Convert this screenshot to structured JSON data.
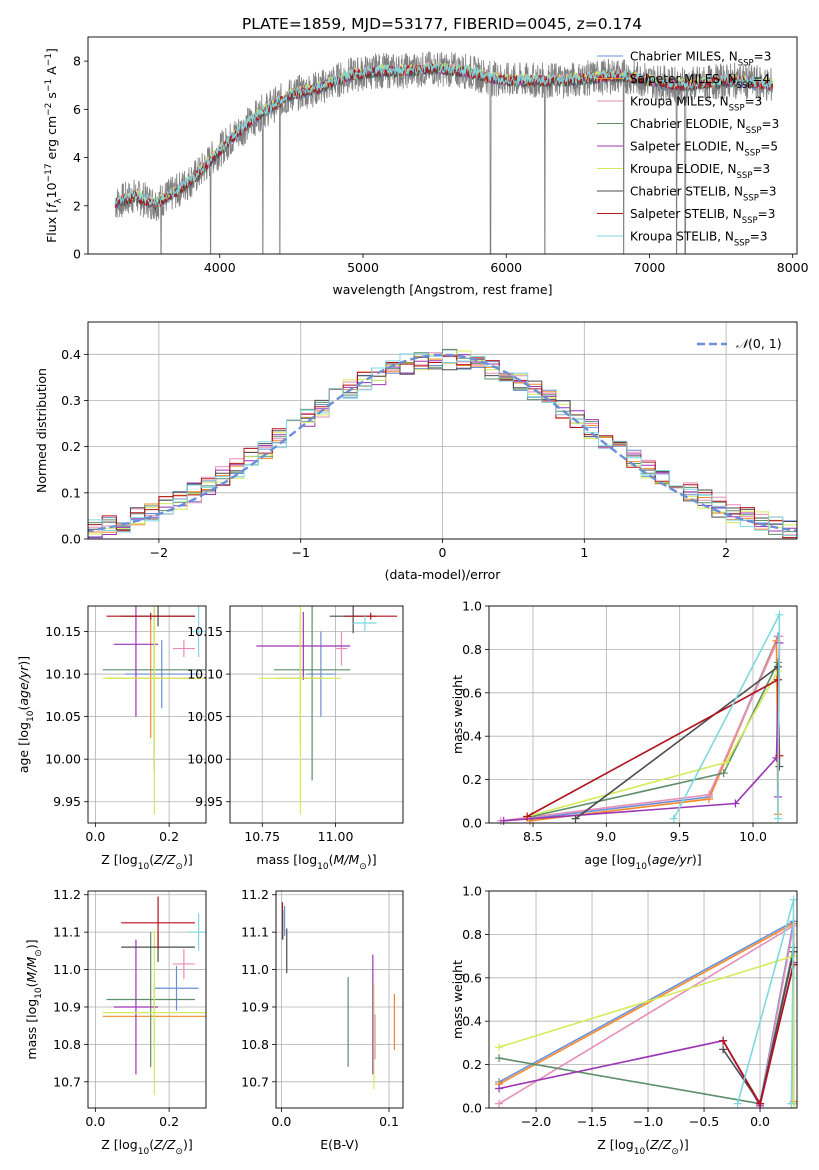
{
  "figure": {
    "title": "PLATE=1859, MJD=53177, FIBERID=0045, z=0.174"
  },
  "series": [
    {
      "name": "Chabrier MILES, N_SSP=3",
      "label_main": "Chabrier MILES, N",
      "label_sub": "SSP",
      "label_tail": "=3",
      "color": "#6b8fd6"
    },
    {
      "name": "Salpeter MILES, N_SSP=4",
      "label_main": "Salpeter MILES, N",
      "label_sub": "SSP",
      "label_tail": "=4",
      "color": "#f5892a"
    },
    {
      "name": "Kroupa MILES, N_SSP=3",
      "label_main": "Kroupa MILES, N",
      "label_sub": "SSP",
      "label_tail": "=3",
      "color": "#e68fb9"
    },
    {
      "name": "Chabrier ELODIE, N_SSP=3",
      "label_main": "Chabrier ELODIE, N",
      "label_sub": "SSP",
      "label_tail": "=3",
      "color": "#5e8e6a"
    },
    {
      "name": "Salpeter ELODIE, N_SSP=5",
      "label_main": "Salpeter ELODIE, N",
      "label_sub": "SSP",
      "label_tail": "=5",
      "color": "#9c35b5"
    },
    {
      "name": "Kroupa ELODIE, N_SSP=3",
      "label_main": "Kroupa ELODIE, N",
      "label_sub": "SSP",
      "label_tail": "=3",
      "color": "#d4ec5a"
    },
    {
      "name": "Chabrier STELIB, N_SSP=3",
      "label_main": "Chabrier STELIB, N",
      "label_sub": "SSP",
      "label_tail": "=3",
      "color": "#4d4d4d"
    },
    {
      "name": "Salpeter STELIB, N_SSP=3",
      "label_main": "Salpeter STELIB, N",
      "label_sub": "SSP",
      "label_tail": "=3",
      "color": "#b3131b"
    },
    {
      "name": "Kroupa STELIB, N_SSP=3",
      "label_main": "Kroupa STELIB, N",
      "label_sub": "SSP",
      "label_tail": "=3",
      "color": "#7fd8e0"
    }
  ],
  "chart_data": [
    {
      "id": "spectrum",
      "type": "line",
      "xlabel": "wavelength [Angstrom, rest frame]",
      "ylabel": "Flux [f_λ 10^-17 erg cm^-2 s^-1 A^-1]",
      "xlim": [
        3080,
        8030
      ],
      "ylim": [
        0,
        9
      ],
      "xticks": [
        4000,
        5000,
        6000,
        7000,
        8000
      ],
      "yticks": [
        0,
        2,
        4,
        6,
        8
      ],
      "grid": false,
      "legend": "upper right",
      "data_color": "#808080",
      "data_profile": {
        "x": [
          3270,
          3400,
          3550,
          3700,
          3850,
          3950,
          4100,
          4300,
          4500,
          4700,
          4900,
          5100,
          5300,
          5500,
          5700,
          5900,
          6000,
          6200,
          6400,
          6600,
          6800,
          7000,
          7200,
          7400,
          7600,
          7860
        ],
        "y": [
          2.1,
          2.4,
          2.1,
          2.6,
          3.3,
          4.0,
          4.9,
          5.9,
          6.6,
          6.9,
          7.4,
          7.6,
          7.6,
          7.7,
          7.6,
          7.3,
          7.2,
          7.2,
          7.2,
          7.3,
          7.4,
          7.2,
          7.0,
          7.1,
          7.2,
          7.0
        ]
      },
      "absorption_lines": [
        3590,
        3935,
        4300,
        4420,
        5890,
        6270,
        6820,
        7190,
        7250
      ]
    },
    {
      "id": "residual_histogram",
      "type": "histogram",
      "xlabel": "(data-model)/error",
      "ylabel": "Normed distribution",
      "xlim": [
        -2.5,
        2.5
      ],
      "ylim": [
        0,
        0.47
      ],
      "xticks": [
        -2,
        -1,
        0,
        1,
        2
      ],
      "yticks": [
        0.0,
        0.1,
        0.2,
        0.3,
        0.4
      ],
      "grid": true,
      "legend": "upper right",
      "legend_label": "N(0,1)",
      "reference_curve": {
        "type": "gaussian",
        "mean": 0,
        "sigma": 1,
        "color": "#6b8fd6"
      },
      "bin_width": 0.1
    },
    {
      "id": "age_vs_Z",
      "type": "scatter",
      "xlabel": "Z [log10(Z/Z_sun)]",
      "ylabel": "age [log10(age/yr)]",
      "xlim": [
        -0.02,
        0.3
      ],
      "ylim": [
        9.925,
        10.18
      ],
      "xticks": [
        0.0,
        0.2
      ],
      "yticks": [
        9.95,
        10.0,
        10.05,
        10.1,
        10.15
      ],
      "grid": true,
      "points": [
        {
          "x": 0.18,
          "xerr": 0.1,
          "y": 10.1,
          "yerr": 0.04
        },
        {
          "x": 0.15,
          "xerr": 0.12,
          "y": 10.095,
          "yerr": 0.07
        },
        {
          "x": 0.24,
          "xerr": 0.03,
          "y": 10.13,
          "yerr": 0.01
        },
        {
          "x": 0.16,
          "xerr": 0.14,
          "y": 10.105,
          "yerr": 0.12
        },
        {
          "x": 0.11,
          "xerr": 0.06,
          "y": 10.135,
          "yerr": 0.085
        },
        {
          "x": 0.16,
          "xerr": 0.14,
          "y": 10.095,
          "yerr": 0.16
        },
        {
          "x": 0.17,
          "xerr": 0.1,
          "y": 10.168,
          "yerr": 0.012
        },
        {
          "x": 0.15,
          "xerr": 0.12,
          "y": 10.168,
          "yerr": 0.004
        },
        {
          "x": 0.28,
          "xerr": 0.02,
          "y": 10.15,
          "yerr": 0.03
        }
      ]
    },
    {
      "id": "age_vs_mass",
      "type": "scatter",
      "xlabel": "mass [log10(M/M_sun)]",
      "ylabel": "",
      "xlim": [
        10.64,
        11.23
      ],
      "ylim": [
        9.925,
        10.18
      ],
      "xticks": [
        10.75,
        11.0
      ],
      "yticks": [
        9.95,
        10.0,
        10.05,
        10.1,
        10.15
      ],
      "grid": true,
      "points": [
        {
          "x": 10.95,
          "xerr": 0.05,
          "y": 10.1,
          "yerr": 0.05
        },
        {
          "x": 10.88,
          "xerr": 0.08,
          "y": 10.095,
          "yerr": 0.075
        },
        {
          "x": 11.02,
          "xerr": 0.02,
          "y": 10.13,
          "yerr": 0.02
        },
        {
          "x": 10.92,
          "xerr": 0.13,
          "y": 10.105,
          "yerr": 0.13
        },
        {
          "x": 10.89,
          "xerr": 0.16,
          "y": 10.133,
          "yerr": 0.04
        },
        {
          "x": 10.88,
          "xerr": 0.14,
          "y": 10.095,
          "yerr": 0.16
        },
        {
          "x": 11.06,
          "xerr": 0.08,
          "y": 10.168,
          "yerr": 0.02
        },
        {
          "x": 11.12,
          "xerr": 0.09,
          "y": 10.168,
          "yerr": 0.004
        },
        {
          "x": 11.1,
          "xerr": 0.04,
          "y": 10.16,
          "yerr": 0.01
        }
      ]
    },
    {
      "id": "mass_vs_Z",
      "type": "scatter",
      "xlabel": "Z [log10(Z/Z_sun)]",
      "ylabel": "mass [log10(M/M_sun)]",
      "xlim": [
        -0.02,
        0.3
      ],
      "ylim": [
        10.63,
        11.21
      ],
      "xticks": [
        0.0,
        0.2
      ],
      "yticks": [
        10.7,
        10.8,
        10.9,
        11.0,
        11.1,
        11.2
      ],
      "grid": true,
      "points": [
        {
          "x": 0.22,
          "xerr": 0.06,
          "y": 10.95,
          "yerr": 0.06
        },
        {
          "x": 0.16,
          "xerr": 0.14,
          "y": 10.875,
          "yerr": 0.085
        },
        {
          "x": 0.24,
          "xerr": 0.03,
          "y": 11.015,
          "yerr": 0.04
        },
        {
          "x": 0.15,
          "xerr": 0.12,
          "y": 10.92,
          "yerr": 0.18
        },
        {
          "x": 0.11,
          "xerr": 0.06,
          "y": 10.9,
          "yerr": 0.18
        },
        {
          "x": 0.16,
          "xerr": 0.14,
          "y": 10.885,
          "yerr": 0.22
        },
        {
          "x": 0.17,
          "xerr": 0.1,
          "y": 11.06,
          "yerr": 0.04
        },
        {
          "x": 0.17,
          "xerr": 0.1,
          "y": 11.125,
          "yerr": 0.07
        },
        {
          "x": 0.28,
          "xerr": 0.03,
          "y": 11.1,
          "yerr": 0.05
        }
      ]
    },
    {
      "id": "mass_vs_EBV",
      "type": "scatter",
      "xlabel": "E(B-V)",
      "ylabel": "",
      "xlim": [
        -0.005,
        0.113
      ],
      "ylim": [
        10.63,
        11.21
      ],
      "xticks": [
        0.0,
        0.1
      ],
      "yticks": [
        10.7,
        10.8,
        10.9,
        11.0,
        11.1,
        11.2
      ],
      "grid": true,
      "points": [
        {
          "x": 0.003,
          "y": 11.13,
          "yerr": 0.04
        },
        {
          "x": 0.105,
          "y": 10.86,
          "yerr": 0.075
        },
        {
          "x": 0.087,
          "y": 10.82,
          "yerr": 0.06
        },
        {
          "x": 0.062,
          "y": 10.86,
          "yerr": 0.12
        },
        {
          "x": 0.085,
          "y": 10.88,
          "yerr": 0.16
        },
        {
          "x": 0.086,
          "y": 10.82,
          "yerr": 0.14
        },
        {
          "x": 0.005,
          "y": 11.05,
          "yerr": 0.06
        },
        {
          "x": 0.001,
          "y": 11.13,
          "yerr": 0.05
        },
        {
          "x": 0.002,
          "y": 11.12,
          "yerr": 0.04
        }
      ]
    },
    {
      "id": "weight_vs_age",
      "type": "line",
      "xlabel": "age [log10(age/yr)]",
      "ylabel": "mass weight",
      "xlim": [
        8.2,
        10.3
      ],
      "ylim": [
        0,
        1.0
      ],
      "xticks": [
        8.5,
        9.0,
        9.5,
        10.0
      ],
      "yticks": [
        0.0,
        0.2,
        0.4,
        0.6,
        0.8,
        1.0
      ],
      "grid": true,
      "lines": [
        {
          "x": [
            8.48,
            9.7,
            10.17
          ],
          "y": [
            0.02,
            0.12,
            0.86
          ]
        },
        {
          "x": [
            8.48,
            9.7,
            10.16,
            10.17
          ],
          "y": [
            0.01,
            0.11,
            0.84,
            0.04
          ]
        },
        {
          "x": [
            8.28,
            9.7,
            10.18
          ],
          "y": [
            0.01,
            0.13,
            0.86
          ]
        },
        {
          "x": [
            8.49,
            9.8,
            10.17
          ],
          "y": [
            0.03,
            0.23,
            0.74
          ]
        },
        {
          "x": [
            8.3,
            9.88,
            10.16,
            10.18,
            10.17
          ],
          "y": [
            0.01,
            0.09,
            0.3,
            0.83,
            0.12
          ]
        },
        {
          "x": [
            8.46,
            9.82,
            10.17
          ],
          "y": [
            0.03,
            0.28,
            0.7
          ]
        },
        {
          "x": [
            8.79,
            10.17,
            10.18
          ],
          "y": [
            0.02,
            0.72,
            0.26
          ]
        },
        {
          "x": [
            8.46,
            10.17,
            10.18
          ],
          "y": [
            0.03,
            0.66,
            0.31
          ]
        },
        {
          "x": [
            9.46,
            10.18,
            10.17
          ],
          "y": [
            0.02,
            0.96,
            0.02
          ]
        }
      ]
    },
    {
      "id": "weight_vs_Z",
      "type": "line",
      "xlabel": "Z [log10(Z/Z_sun)]",
      "ylabel": "mass weight",
      "xlim": [
        -2.42,
        0.33
      ],
      "ylim": [
        0,
        1.0
      ],
      "xticks": [
        -2.0,
        -1.5,
        -1.0,
        -0.5,
        0.0
      ],
      "yticks": [
        0.0,
        0.2,
        0.4,
        0.6,
        0.8,
        1.0
      ],
      "grid": true,
      "lines": [
        {
          "x": [
            -2.33,
            0.3,
            0.0
          ],
          "y": [
            0.12,
            0.86,
            0.02
          ]
        },
        {
          "x": [
            -2.33,
            0.3,
            0.3
          ],
          "y": [
            0.11,
            0.85,
            0.03
          ]
        },
        {
          "x": [
            -2.33,
            0.3,
            0.0
          ],
          "y": [
            0.02,
            0.84,
            0.01
          ]
        },
        {
          "x": [
            -2.33,
            0.0,
            0.3
          ],
          "y": [
            0.23,
            0.02,
            0.74
          ]
        },
        {
          "x": [
            -2.33,
            -0.33,
            0.0,
            0.3,
            0.3
          ],
          "y": [
            0.09,
            0.31,
            0.01,
            0.67,
            0.02
          ]
        },
        {
          "x": [
            -2.33,
            0.3,
            0.3
          ],
          "y": [
            0.28,
            0.7,
            0.02
          ]
        },
        {
          "x": [
            -0.33,
            0.0,
            0.3
          ],
          "y": [
            0.27,
            0.02,
            0.72
          ]
        },
        {
          "x": [
            -0.33,
            0.0,
            0.3
          ],
          "y": [
            0.31,
            0.02,
            0.66
          ]
        },
        {
          "x": [
            -0.2,
            0.3,
            0.28
          ],
          "y": [
            0.02,
            0.96,
            0.02
          ]
        }
      ]
    }
  ]
}
